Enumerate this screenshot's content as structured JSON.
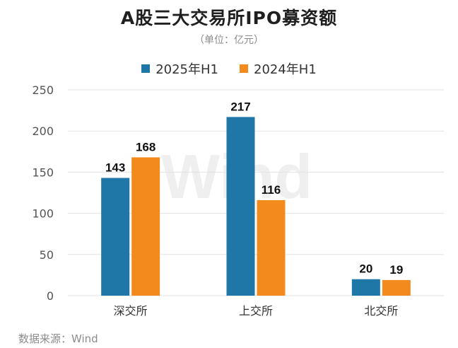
{
  "colors": {
    "series1": "#1f77a8",
    "series2": "#f28a1e",
    "grid": "#e3e3e3",
    "axis_text": "#555555",
    "label_text": "#111111",
    "watermark": "#efefef"
  },
  "watermark": "Wind",
  "source": "数据来源：Wind",
  "chart_data": {
    "type": "bar",
    "title": "A股三大交易所IPO募资额",
    "subtitle": "（单位：亿元）",
    "categories": [
      "深交所",
      "上交所",
      "北交所"
    ],
    "series": [
      {
        "name": "2025年H1",
        "values": [
          143,
          217,
          20
        ]
      },
      {
        "name": "2024年H1",
        "values": [
          168,
          116,
          19
        ]
      }
    ],
    "ylim": [
      0,
      250
    ],
    "yticks": [
      0,
      50,
      100,
      150,
      200,
      250
    ],
    "grid": true,
    "legend_position": "top-center",
    "data_labels": true
  }
}
